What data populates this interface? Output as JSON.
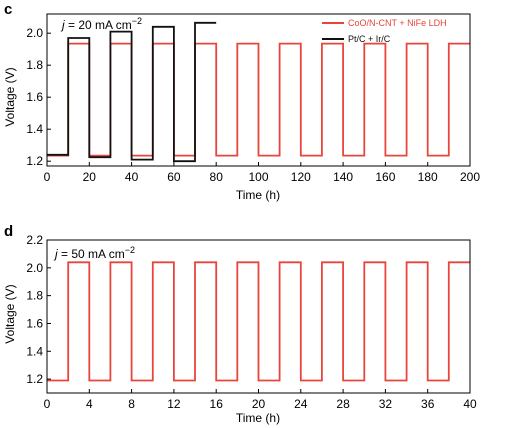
{
  "colors": {
    "red": "#e8453c",
    "black": "#111111"
  },
  "chart_data": [
    {
      "panel_letter": "c",
      "type": "line",
      "annotation": {
        "prefix": "j",
        "text": " = 20 mA cm",
        "sup": "−2"
      },
      "xlabel": "Time (h)",
      "ylabel": "Voltage (V)",
      "xlim": [
        0,
        200
      ],
      "ylim": [
        1.17,
        2.12
      ],
      "xticks": [
        0,
        20,
        40,
        60,
        80,
        100,
        120,
        140,
        160,
        180,
        200
      ],
      "yticks": [
        1.2,
        1.4,
        1.6,
        1.8,
        2.0
      ],
      "ytick_labels": [
        "1.2",
        "1.4",
        "1.6",
        "1.8",
        "2.0"
      ],
      "legend": {
        "placement": "top-right"
      },
      "series": [
        {
          "name": "CoO/N-CNT + NiFe LDH",
          "color": "#e8453c",
          "period": 20,
          "phase": 10,
          "x_end": 200,
          "low": 1.235,
          "high": 1.935
        },
        {
          "name": "Pt/C + Ir/C",
          "color": "#111111",
          "period": 20,
          "phase": 10,
          "x_end": 80,
          "low_values": [
            1.24,
            1.225,
            1.21,
            1.2
          ],
          "high_values": [
            1.97,
            2.01,
            2.04,
            2.065
          ]
        }
      ]
    },
    {
      "panel_letter": "d",
      "type": "line",
      "annotation": {
        "prefix": "j",
        "text": " = 50 mA cm",
        "sup": "−2"
      },
      "xlabel": "Time (h)",
      "ylabel": "Voltage (V)",
      "xlim": [
        0,
        40
      ],
      "ylim": [
        1.1,
        2.2
      ],
      "xticks": [
        0,
        4,
        8,
        12,
        16,
        20,
        24,
        28,
        32,
        36,
        40
      ],
      "yticks": [
        1.2,
        1.4,
        1.6,
        1.8,
        2.0,
        2.2
      ],
      "ytick_labels": [
        "1.2",
        "1.4",
        "1.6",
        "1.8",
        "2.0",
        "2.2"
      ],
      "series": [
        {
          "color": "#e8453c",
          "period": 4,
          "phase": 2,
          "x_end": 40,
          "low": 1.19,
          "high": 2.04
        }
      ]
    }
  ]
}
